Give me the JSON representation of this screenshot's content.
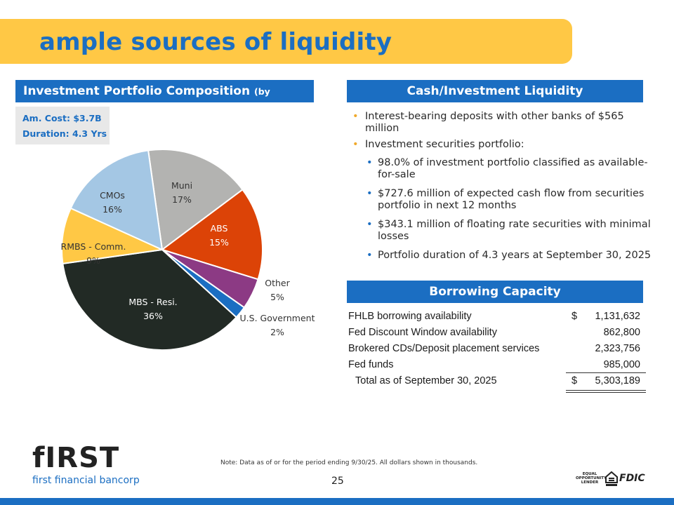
{
  "title": "ample sources of liquidity",
  "portfolio": {
    "header": "Investment Portfolio Composition",
    "header_sub": "(by amortized cost)",
    "am_cost": "Am. Cost: $3.7B",
    "duration": "Duration: 4.3 Yrs"
  },
  "chart_data": {
    "type": "pie",
    "slices": [
      {
        "label": "Muni",
        "pct_label": "17%",
        "value": 17,
        "color": "#b3b3b1"
      },
      {
        "label": "ABS",
        "pct_label": "15%",
        "value": 15,
        "color": "#dc4307"
      },
      {
        "label": "Other",
        "pct_label": "5%",
        "value": 5,
        "color": "#8c3a84"
      },
      {
        "label": "U.S. Government",
        "pct_label": "2%",
        "value": 2,
        "color": "#1b6ec2"
      },
      {
        "label": "MBS - Resi.",
        "pct_label": "36%",
        "value": 36,
        "color": "#222a25"
      },
      {
        "label": "RMBS - Comm.",
        "pct_label": "9%",
        "value": 9,
        "color": "#ffc845"
      },
      {
        "label": "CMOs",
        "pct_label": "16%",
        "value": 16,
        "color": "#a4c7e4"
      }
    ]
  },
  "cash": {
    "header": "Cash/Investment Liquidity",
    "bullets": [
      {
        "text": "Interest-bearing deposits with other banks of $565 million",
        "sub": []
      },
      {
        "text": "Investment securities portfolio:",
        "sub": [
          "98.0% of investment portfolio classified as available-for-sale",
          "$727.6 million of expected cash flow from securities portfolio in next 12 months",
          "$343.1 million of floating rate securities with minimal losses",
          "Portfolio duration of 4.3 years at September 30, 2025"
        ]
      }
    ]
  },
  "borrowing": {
    "header": "Borrowing Capacity",
    "rows": [
      {
        "label": "FHLB borrowing availability",
        "dollar": "$",
        "amount": "1,131,632"
      },
      {
        "label": "Fed Discount Window availability",
        "dollar": "",
        "amount": "862,800"
      },
      {
        "label": "Brokered CDs/Deposit placement services",
        "dollar": "",
        "amount": "2,323,756"
      },
      {
        "label": "Fed funds",
        "dollar": "",
        "amount": "985,000"
      }
    ],
    "total": {
      "label": "Total as of September 30, 2025",
      "dollar": "$",
      "amount": "5,303,189"
    }
  },
  "footer": {
    "logo": "fIRST",
    "logo_sub": "first financial bancorp",
    "note": "Note: Data as of or for the period ending 9/30/25. All dollars shown in thousands.",
    "page": "25",
    "equal_lender": "EQUAL OPPORTUNITY LENDER",
    "fdic": "FDIC"
  }
}
